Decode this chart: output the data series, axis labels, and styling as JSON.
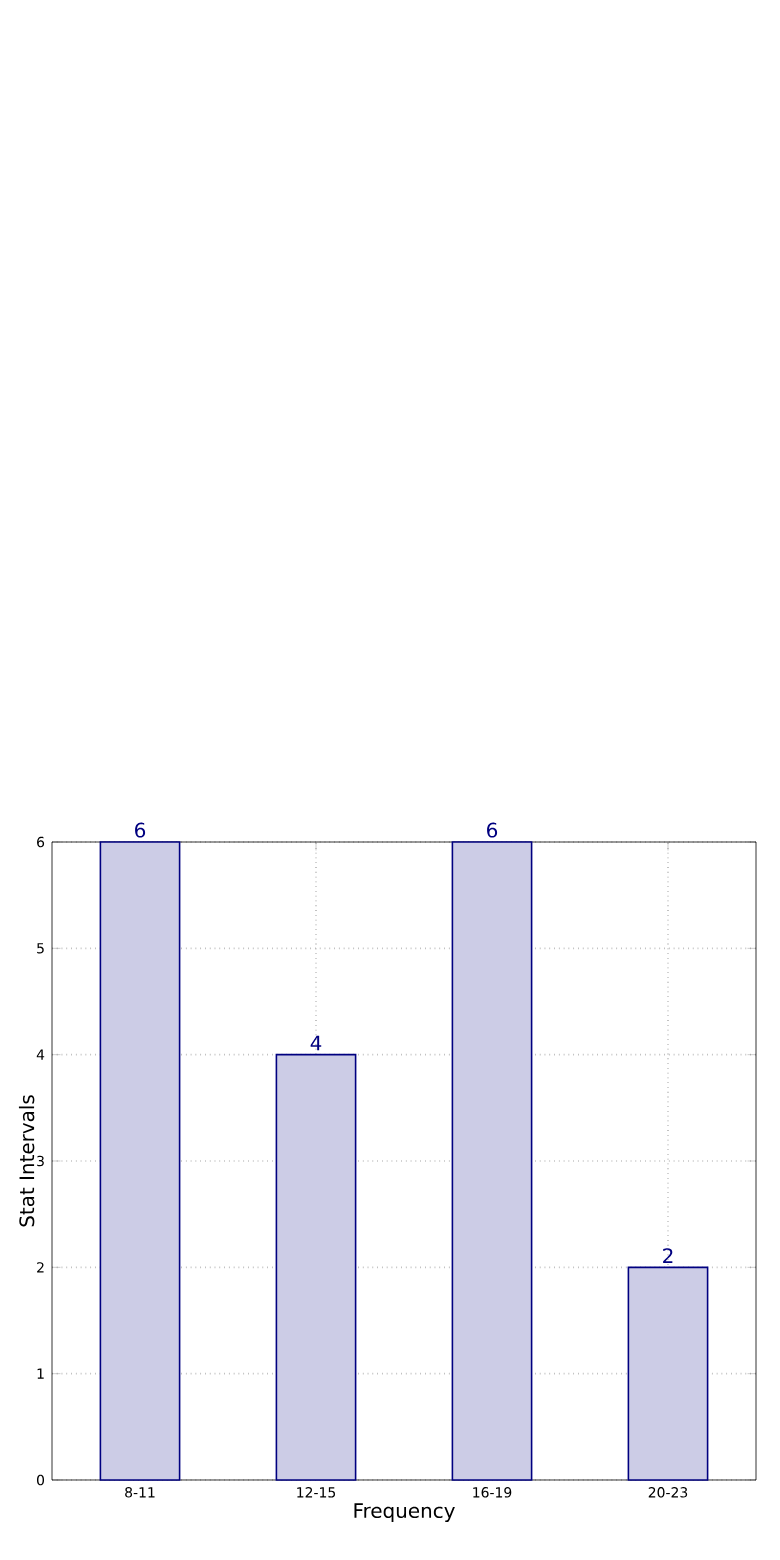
{
  "chart_data": {
    "type": "bar",
    "xlabel": "Frequency",
    "ylabel": "Stat Intervals",
    "categories": [
      "8-11",
      "12-15",
      "16-19",
      "20-23"
    ],
    "values": [
      6,
      4,
      6,
      2
    ],
    "color": "#cccce6",
    "ylim": [
      0,
      6
    ],
    "yticks": [
      0,
      1,
      2,
      3,
      4,
      5,
      6
    ],
    "grid": true,
    "data_labels": true
  }
}
